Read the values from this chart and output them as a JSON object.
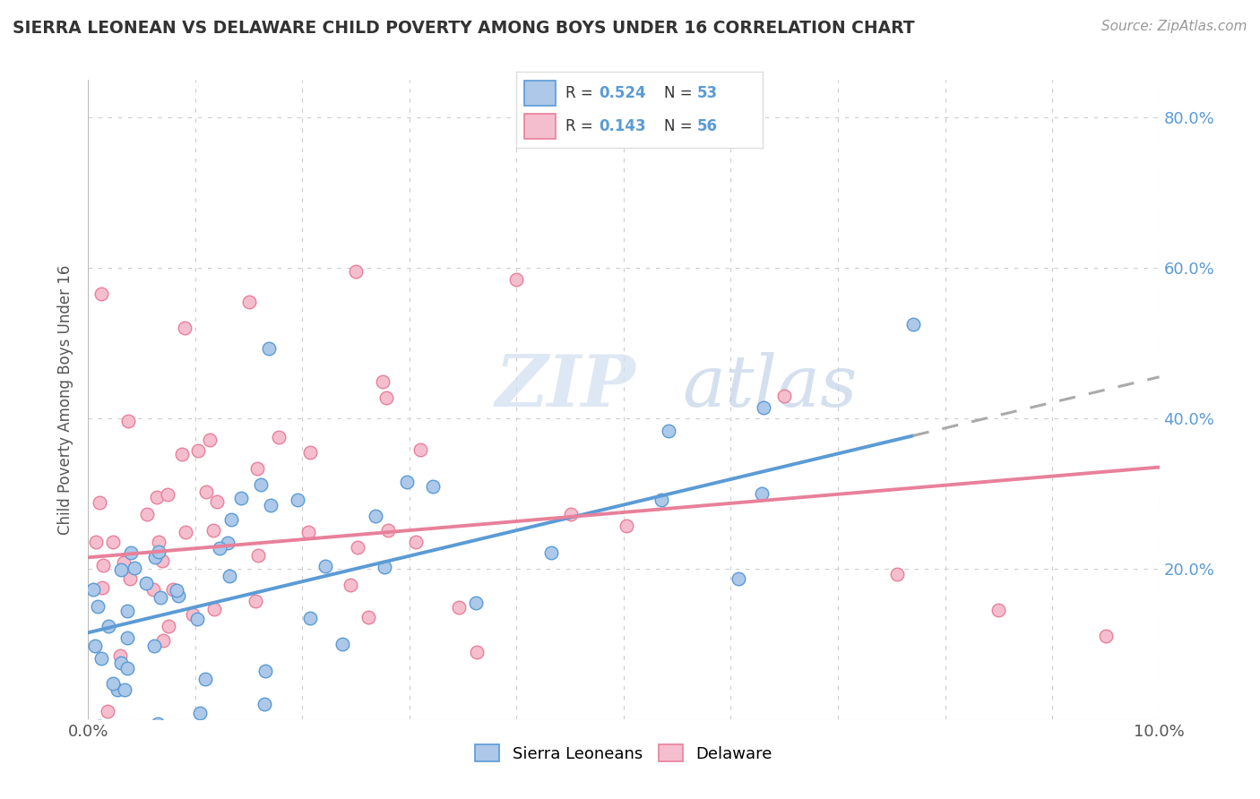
{
  "title": "SIERRA LEONEAN VS DELAWARE CHILD POVERTY AMONG BOYS UNDER 16 CORRELATION CHART",
  "source": "Source: ZipAtlas.com",
  "ylabel": "Child Poverty Among Boys Under 16",
  "series": [
    {
      "name": "Sierra Leoneans",
      "color": "#adc8e8",
      "edge_color": "#5b9bd5",
      "R": 0.524,
      "N": 53
    },
    {
      "name": "Delaware",
      "color": "#f5bece",
      "edge_color": "#e8809a",
      "R": 0.143,
      "N": 56
    }
  ],
  "blue_trend": [
    0.0,
    0.1,
    0.115,
    0.455
  ],
  "blue_trend_solid_end_x": 0.077,
  "pink_trend": [
    0.0,
    0.1,
    0.215,
    0.335
  ],
  "xlim": [
    0.0,
    0.1
  ],
  "ylim": [
    0.0,
    0.85
  ],
  "xticks": [
    0.0,
    0.01,
    0.02,
    0.03,
    0.04,
    0.05,
    0.06,
    0.07,
    0.08,
    0.09,
    0.1
  ],
  "yticks": [
    0.0,
    0.2,
    0.4,
    0.6,
    0.8
  ],
  "blue_color": "#5b9bd5",
  "pink_color": "#e8809a",
  "background_color": "#ffffff",
  "grid_color": "#cccccc",
  "title_color": "#333333",
  "source_color": "#999999"
}
